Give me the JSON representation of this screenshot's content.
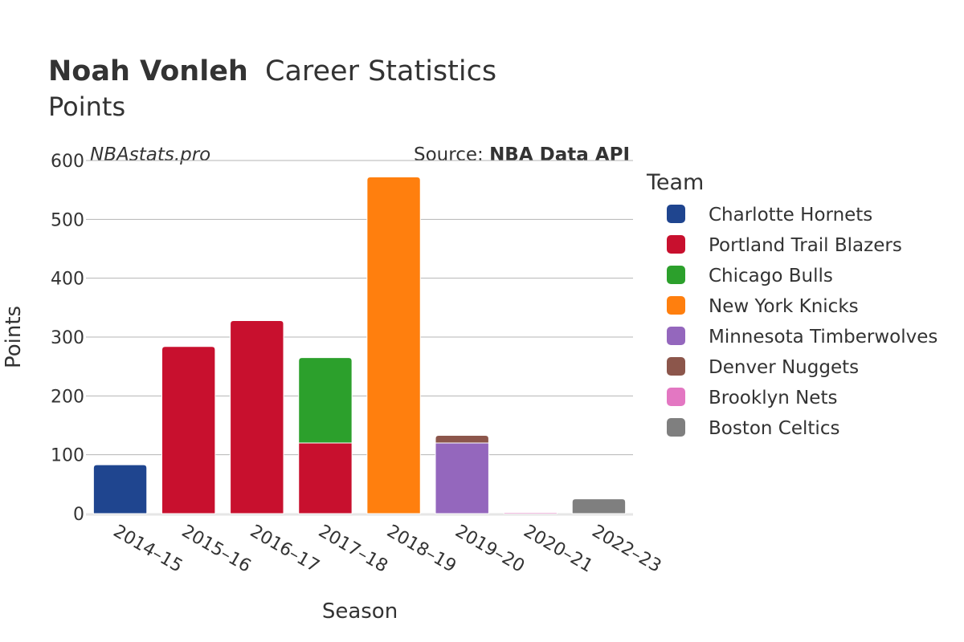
{
  "header": {
    "player_name": "Noah Vonleh",
    "title_suffix": "Career Statistics",
    "subtitle": "Points"
  },
  "watermark": "NBAstats.pro",
  "source": {
    "prefix": "Source: ",
    "name": "NBA Data API"
  },
  "chart_data": {
    "type": "bar",
    "barmode": "stack",
    "categories": [
      "2014–15",
      "2015–16",
      "2016–17",
      "2017–18",
      "2018–19",
      "2019–20",
      "2020–21",
      "2022–23"
    ],
    "xlabel": "Season",
    "ylabel": "Points",
    "ylim": [
      0,
      600
    ],
    "yticks": [
      0,
      100,
      200,
      300,
      400,
      500,
      600
    ],
    "grid": true,
    "legend_title": "Team",
    "legend_position": "right",
    "series": [
      {
        "name": "Charlotte Hornets",
        "color": "#1f458f",
        "values": [
          83,
          0,
          0,
          0,
          0,
          0,
          0,
          0
        ]
      },
      {
        "name": "Portland Trail Blazers",
        "color": "#c8102e",
        "values": [
          0,
          284,
          328,
          120,
          0,
          0,
          0,
          0
        ]
      },
      {
        "name": "Chicago Bulls",
        "color": "#2ca02c",
        "values": [
          0,
          0,
          0,
          145,
          0,
          0,
          0,
          0
        ]
      },
      {
        "name": "New York Knicks",
        "color": "#ff7f0e",
        "values": [
          0,
          0,
          0,
          0,
          572,
          0,
          0,
          0
        ]
      },
      {
        "name": "Minnesota Timberwolves",
        "color": "#9467bd",
        "values": [
          0,
          0,
          0,
          0,
          0,
          120,
          0,
          0
        ]
      },
      {
        "name": "Denver Nuggets",
        "color": "#8c564b",
        "values": [
          0,
          0,
          0,
          0,
          0,
          13,
          0,
          0
        ]
      },
      {
        "name": "Brooklyn Nets",
        "color": "#e377c2",
        "values": [
          0,
          0,
          0,
          0,
          0,
          0,
          2,
          0
        ]
      },
      {
        "name": "Boston Celtics",
        "color": "#7f7f7f",
        "values": [
          0,
          0,
          0,
          0,
          0,
          0,
          0,
          25
        ]
      }
    ]
  }
}
